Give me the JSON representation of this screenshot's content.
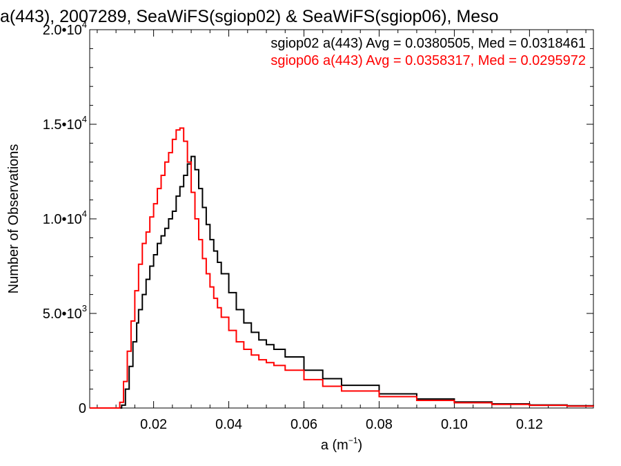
{
  "chart_data": {
    "type": "line",
    "title": "a(443), 2007289, SeaWiFS(sgiop02) & SeaWiFS(sgiop06), Meso",
    "xlabel": "a (m⁻¹)",
    "ylabel": "Number of Observations",
    "xlim": [
      0.003,
      0.137
    ],
    "ylim": [
      0,
      20000
    ],
    "x_ticks": [
      {
        "value": 0.02,
        "label": "0.02"
      },
      {
        "value": 0.04,
        "label": "0.04"
      },
      {
        "value": 0.06,
        "label": "0.06"
      },
      {
        "value": 0.08,
        "label": "0.08"
      },
      {
        "value": 0.1,
        "label": "0.10"
      },
      {
        "value": 0.12,
        "label": "0.12"
      }
    ],
    "y_ticks": [
      {
        "value": 0,
        "mantissa": "0",
        "exponent": ""
      },
      {
        "value": 5000,
        "mantissa": "5.0•10",
        "exponent": "3"
      },
      {
        "value": 10000,
        "mantissa": "1.0•10",
        "exponent": "4"
      },
      {
        "value": 15000,
        "mantissa": "1.5•10",
        "exponent": "4"
      },
      {
        "value": 20000,
        "mantissa": "2.0•10",
        "exponent": "4"
      }
    ],
    "legend_position": "top-right",
    "series": [
      {
        "name": "sgiop02 a(443) Avg = 0.0380505, Med = 0.0318461",
        "color": "#000000",
        "x": [
          0.003,
          0.008,
          0.0105,
          0.0115,
          0.0125,
          0.0135,
          0.0145,
          0.0155,
          0.016,
          0.017,
          0.018,
          0.019,
          0.02,
          0.021,
          0.022,
          0.023,
          0.024,
          0.025,
          0.026,
          0.027,
          0.028,
          0.029,
          0.03,
          0.031,
          0.032,
          0.033,
          0.034,
          0.035,
          0.036,
          0.037,
          0.038,
          0.04,
          0.042,
          0.044,
          0.046,
          0.048,
          0.05,
          0.052,
          0.055,
          0.06,
          0.065,
          0.07,
          0.08,
          0.09,
          0.1,
          0.11,
          0.12,
          0.13,
          0.137
        ],
        "y": [
          0,
          0,
          0,
          150,
          1000,
          2200,
          3500,
          4500,
          5200,
          6000,
          6800,
          7500,
          8100,
          8700,
          9100,
          9500,
          10000,
          10400,
          11200,
          11700,
          12300,
          12900,
          13300,
          12600,
          11600,
          10600,
          9700,
          8900,
          8300,
          7700,
          7100,
          6100,
          5200,
          4500,
          4000,
          3600,
          3350,
          3100,
          2700,
          2000,
          1550,
          1200,
          750,
          480,
          320,
          220,
          160,
          120,
          100
        ]
      },
      {
        "name": "sgiop06 a(443) Avg = 0.0358317, Med = 0.0295972",
        "color": "#ff0000",
        "x": [
          0.003,
          0.008,
          0.01,
          0.011,
          0.012,
          0.013,
          0.014,
          0.015,
          0.016,
          0.017,
          0.018,
          0.019,
          0.02,
          0.021,
          0.022,
          0.023,
          0.024,
          0.025,
          0.026,
          0.027,
          0.028,
          0.029,
          0.03,
          0.031,
          0.032,
          0.033,
          0.034,
          0.035,
          0.036,
          0.037,
          0.038,
          0.04,
          0.042,
          0.044,
          0.046,
          0.048,
          0.05,
          0.052,
          0.055,
          0.06,
          0.065,
          0.07,
          0.08,
          0.09,
          0.1,
          0.11,
          0.12,
          0.13,
          0.137
        ],
        "y": [
          0,
          0,
          0,
          300,
          1400,
          3000,
          4600,
          6200,
          7600,
          8700,
          9300,
          10100,
          10800,
          11600,
          12300,
          13000,
          13500,
          14200,
          14700,
          14800,
          14100,
          13000,
          11400,
          10000,
          8900,
          7900,
          7100,
          6400,
          5800,
          5300,
          4800,
          4100,
          3500,
          3100,
          2800,
          2550,
          2400,
          2250,
          2000,
          1500,
          1150,
          900,
          600,
          400,
          280,
          190,
          140,
          100,
          80
        ]
      }
    ]
  }
}
